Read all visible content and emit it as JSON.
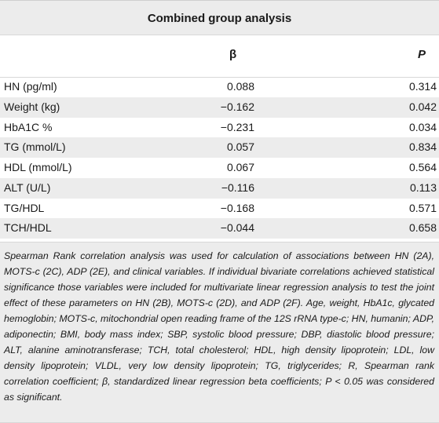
{
  "table": {
    "title": "Combined group analysis",
    "header": {
      "label": "",
      "beta": "β",
      "p": "P"
    },
    "rows": [
      {
        "label": "HN (pg/ml)",
        "beta": "0.088",
        "p": "0.314"
      },
      {
        "label": "Weight (kg)",
        "beta": "−0.162",
        "p": "0.042"
      },
      {
        "label": "HbA1C %",
        "beta": "−0.231",
        "p": "0.034"
      },
      {
        "label": "TG (mmol/L)",
        "beta": "0.057",
        "p": "0.834"
      },
      {
        "label": "HDL (mmol/L)",
        "beta": "0.067",
        "p": "0.564"
      },
      {
        "label": "ALT (U/L)",
        "beta": "−0.116",
        "p": "0.113"
      },
      {
        "label": "TG/HDL",
        "beta": "−0.168",
        "p": "0.571"
      },
      {
        "label": "TCH/HDL",
        "beta": "−0.044",
        "p": "0.658"
      }
    ],
    "footnote": "Spearman Rank correlation analysis was used for calculation of associations between HN (2A), MOTS-c (2C), ADP (2E), and clinical variables. If individual bivariate correlations achieved statistical significance those variables were included for multivariate linear regression analysis to test the joint effect of these parameters on HN (2B), MOTS-c (2D), and ADP (2F). Age, weight, HbA1c, glycated hemoglobin; MOTS-c, mitochondrial open reading frame of the 12S rRNA type-c; HN, humanin; ADP, adiponectin; BMI, body mass index; SBP, systolic blood pressure; DBP, diastolic blood pressure; ALT, alanine aminotransferase; TCH, total cholesterol; HDL, high density lipoprotein; LDL, low density lipoprotein; VLDL, very low density lipoprotein; TG, triglycerides; R, Spearman rank correlation coefficient; β, standardized linear regression beta coefficients; P < 0.05 was considered as significant."
  },
  "colors": {
    "band": "#ececec",
    "rule": "#d8d8d8",
    "text": "#1a1a1a"
  }
}
